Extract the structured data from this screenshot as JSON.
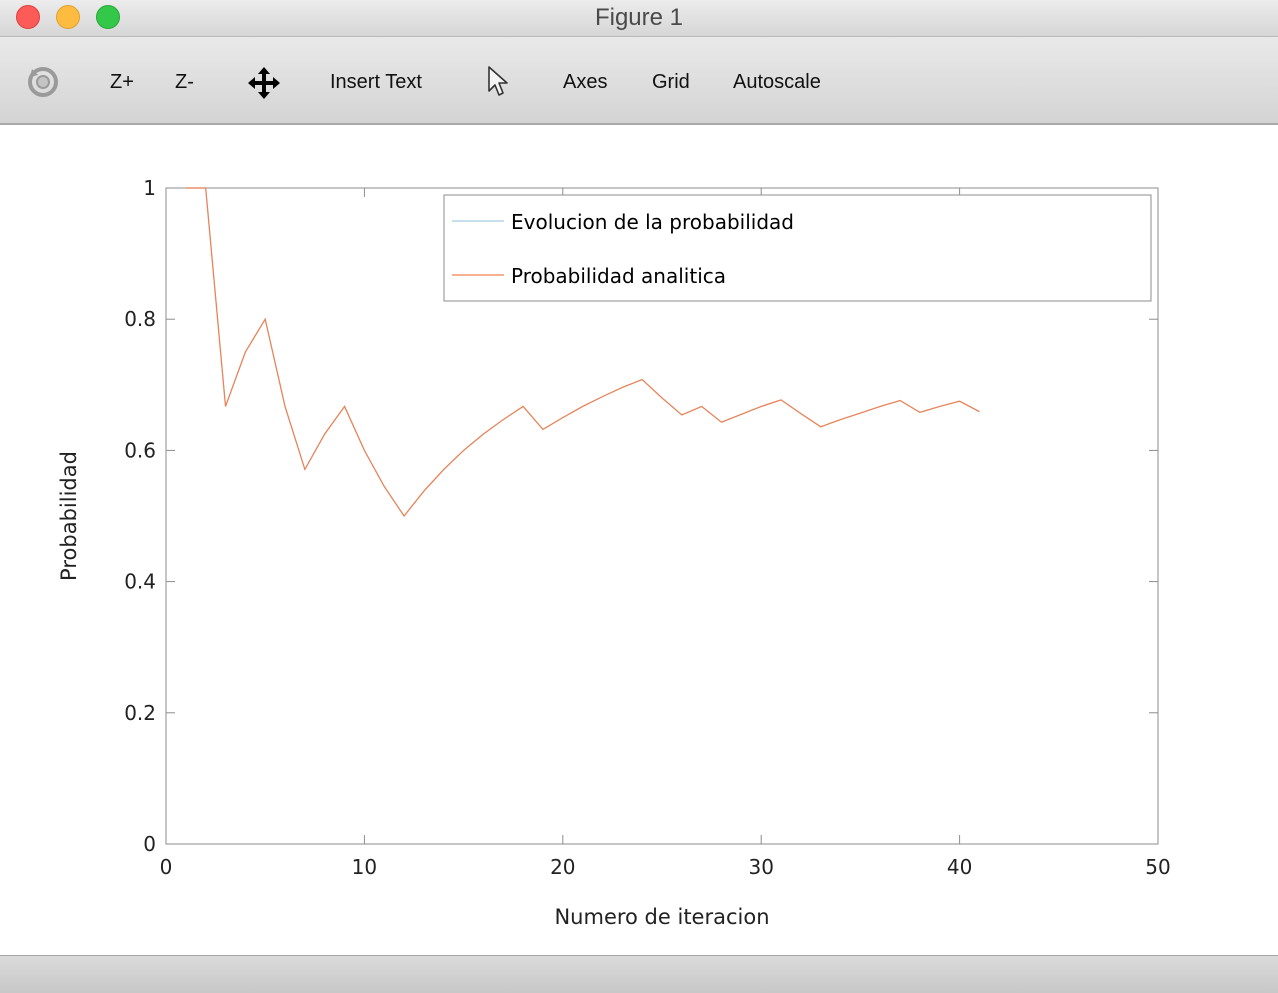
{
  "window": {
    "title": "Figure 1"
  },
  "toolbar": {
    "rotate_icon": "rotate-icon",
    "zoom_in": "Z+",
    "zoom_out": "Z-",
    "pan_icon": "pan-arrows-icon",
    "insert_text": "Insert Text",
    "select_icon": "pointer-arrow-icon",
    "axes": "Axes",
    "grid": "Grid",
    "autoscale": "Autoscale"
  },
  "colors": {
    "series1": "#a6cee3",
    "series2": "#f08050",
    "axis": "#8c8c8c"
  },
  "chart_data": {
    "type": "line",
    "title": "",
    "xlabel": "Numero de iteracion",
    "ylabel": "Probabilidad",
    "xlim": [
      0,
      50
    ],
    "ylim": [
      0,
      1
    ],
    "xticks": [
      0,
      10,
      20,
      30,
      40,
      50
    ],
    "yticks": [
      0,
      0.2,
      0.4,
      0.6,
      0.8,
      1
    ],
    "ytick_labels": [
      "0",
      "0.2",
      "0.4",
      "0.6",
      "0.8",
      "1"
    ],
    "grid": false,
    "legend_position": "top-right",
    "x": [
      1,
      2,
      3,
      4,
      5,
      6,
      7,
      8,
      9,
      10,
      11,
      12,
      13,
      14,
      15,
      16,
      17,
      18,
      19,
      20,
      21,
      22,
      23,
      24,
      25,
      26,
      27,
      28,
      29,
      30,
      31,
      32,
      33,
      34,
      35,
      36,
      37,
      38,
      39,
      40,
      41
    ],
    "series": [
      {
        "name": "Evolucion de la probabilidad",
        "color": "#a6cee3",
        "values": [
          1,
          1,
          0.667,
          0.75,
          0.8,
          0.667,
          0.571,
          0.625,
          0.667,
          0.6,
          0.545,
          0.5,
          0.538,
          0.571,
          0.6,
          0.625,
          0.647,
          0.667,
          0.632,
          0.65,
          0.667,
          0.682,
          0.696,
          0.708,
          0.68,
          0.654,
          0.667,
          0.643,
          0.655,
          0.667,
          0.677,
          0.656,
          0.636,
          0.647,
          0.657,
          0.667,
          0.676,
          0.658,
          0.667,
          0.675,
          0.659
        ]
      },
      {
        "name": "Probabilidad analitica",
        "color": "#f08050",
        "values": [
          1,
          1,
          0.667,
          0.75,
          0.8,
          0.667,
          0.571,
          0.625,
          0.667,
          0.6,
          0.545,
          0.5,
          0.538,
          0.571,
          0.6,
          0.625,
          0.647,
          0.667,
          0.632,
          0.65,
          0.667,
          0.682,
          0.696,
          0.708,
          0.68,
          0.654,
          0.667,
          0.643,
          0.655,
          0.667,
          0.677,
          0.656,
          0.636,
          0.647,
          0.657,
          0.667,
          0.676,
          0.658,
          0.667,
          0.675,
          0.659
        ]
      }
    ]
  }
}
